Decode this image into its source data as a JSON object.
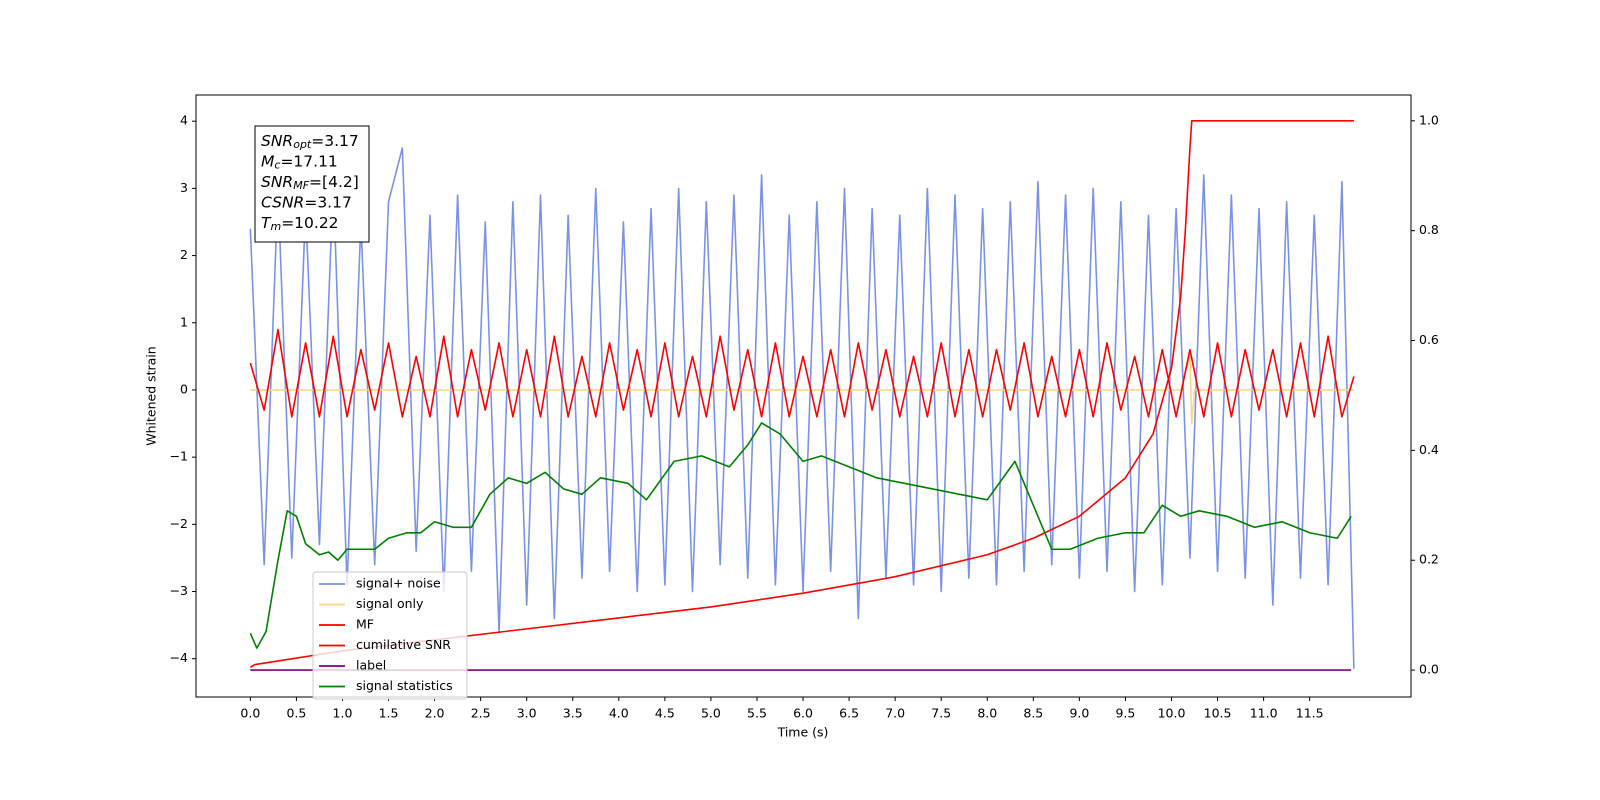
{
  "chart_data": {
    "type": "line",
    "xlabel": "Time (s)",
    "ylabel": "Whitened strain",
    "xlim": [
      -0.59,
      12.6
    ],
    "ylim": [
      -4.57,
      4.39
    ],
    "y2lim": [
      -0.049,
      1.047
    ],
    "xticks": [
      {
        "value": 0,
        "label": "0.0"
      },
      0.5,
      {
        "value": 1,
        "label": "1.0"
      },
      1.5,
      {
        "value": 2,
        "label": "2.0"
      },
      2.5,
      {
        "value": 3,
        "label": "3.0"
      },
      3.5,
      {
        "value": 4,
        "label": "4.0"
      },
      4.5,
      {
        "value": 5,
        "label": "5.0"
      },
      5.5,
      {
        "value": 6,
        "label": "6.0"
      },
      6.5,
      {
        "value": 7,
        "label": "7.0"
      },
      7.5,
      {
        "value": 8,
        "label": "8.0"
      },
      8.5,
      {
        "value": 9,
        "label": "9.0"
      },
      9.5,
      {
        "value": 10,
        "label": "10.0"
      },
      10.5,
      {
        "value": 11,
        "label": "11.0"
      },
      11.5
    ],
    "yticks": [
      -4,
      -3,
      -2,
      -1,
      0,
      1,
      2,
      3,
      4
    ],
    "y2ticks": [
      {
        "value": 0,
        "label": "0.0"
      },
      0.2,
      0.4,
      0.6,
      0.8,
      {
        "value": 1,
        "label": "1.0"
      }
    ],
    "legend": "lower left",
    "annotations": [
      {
        "symbol": "SNR",
        "subscript": "opt",
        "text": "=3.17"
      },
      {
        "symbol": "M",
        "subscript": "c",
        "text": "=17.11"
      },
      {
        "symbol": "SNR",
        "subscript": "MF",
        "text": "=[4.2]"
      },
      {
        "symbol": "CSNR",
        "text": "=3.17"
      },
      {
        "symbol": "T",
        "subscript": "m",
        "text": "=10.22"
      }
    ],
    "series": [
      {
        "name": "signal+ noise",
        "color": "#7b93e6",
        "x": [
          0,
          0.15,
          0.3,
          0.45,
          0.6,
          0.75,
          0.9,
          1.05,
          1.2,
          1.35,
          1.5,
          1.65,
          1.8,
          1.95,
          2.1,
          2.25,
          2.4,
          2.55,
          2.7,
          2.85,
          3,
          3.15,
          3.3,
          3.45,
          3.6,
          3.75,
          3.9,
          4.05,
          4.2,
          4.35,
          4.5,
          4.65,
          4.8,
          4.95,
          5.1,
          5.25,
          5.4,
          5.55,
          5.7,
          5.85,
          6,
          6.15,
          6.3,
          6.45,
          6.6,
          6.75,
          6.9,
          7.05,
          7.2,
          7.35,
          7.5,
          7.65,
          7.8,
          7.95,
          8.1,
          8.25,
          8.4,
          8.55,
          8.7,
          8.85,
          9,
          9.15,
          9.3,
          9.45,
          9.6,
          9.75,
          9.9,
          10.05,
          10.2,
          10.35,
          10.5,
          10.65,
          10.8,
          10.95,
          11.1,
          11.25,
          11.4,
          11.55,
          11.7,
          11.85,
          11.98
        ],
        "values": [
          2.4,
          -2.6,
          3.0,
          -2.5,
          2.7,
          -2.3,
          3.1,
          -2.9,
          2.5,
          -2.6,
          2.8,
          3.6,
          -2.4,
          2.6,
          -3.0,
          2.9,
          -2.7,
          2.5,
          -3.6,
          2.8,
          -3.2,
          2.9,
          -3.4,
          2.6,
          -2.8,
          3.0,
          -2.7,
          2.5,
          -3.0,
          2.7,
          -2.9,
          3.0,
          -3.0,
          2.8,
          -2.6,
          2.9,
          -2.8,
          3.2,
          -2.9,
          2.6,
          -3.0,
          2.8,
          -2.7,
          3.0,
          -3.4,
          2.7,
          -2.8,
          2.6,
          -2.9,
          3.0,
          -3.0,
          2.9,
          -2.8,
          2.7,
          -2.9,
          2.8,
          -2.7,
          3.1,
          -2.6,
          2.9,
          -2.8,
          3.0,
          -2.7,
          2.8,
          -3.0,
          2.6,
          -2.9,
          2.7,
          -2.5,
          3.2,
          -2.7,
          2.9,
          -2.8,
          2.7,
          -3.2,
          2.8,
          -2.8,
          2.6,
          -2.9,
          3.1,
          -4.15
        ]
      },
      {
        "name": "signal only",
        "color": "#ffd58a",
        "x": [
          0,
          10.1,
          10.2,
          10.22,
          10.25,
          11.98
        ],
        "values": [
          0,
          0,
          0.5,
          -0.5,
          0,
          0
        ]
      },
      {
        "name": "MF",
        "color": "#ff0000",
        "x": [
          0,
          0.15,
          0.3,
          0.45,
          0.6,
          0.75,
          0.9,
          1.05,
          1.2,
          1.35,
          1.5,
          1.65,
          1.8,
          1.95,
          2.1,
          2.25,
          2.4,
          2.55,
          2.7,
          2.85,
          3,
          3.15,
          3.3,
          3.45,
          3.6,
          3.75,
          3.9,
          4.05,
          4.2,
          4.35,
          4.5,
          4.65,
          4.8,
          4.95,
          5.1,
          5.25,
          5.4,
          5.55,
          5.7,
          5.85,
          6,
          6.15,
          6.3,
          6.45,
          6.6,
          6.75,
          6.9,
          7.05,
          7.2,
          7.35,
          7.5,
          7.65,
          7.8,
          7.95,
          8.1,
          8.25,
          8.4,
          8.55,
          8.7,
          8.85,
          9,
          9.15,
          9.3,
          9.45,
          9.6,
          9.75,
          9.9,
          10.05,
          10.2,
          10.35,
          10.5,
          10.65,
          10.8,
          10.95,
          11.1,
          11.25,
          11.4,
          11.55,
          11.7,
          11.85,
          11.98
        ],
        "values": [
          0.4,
          -0.3,
          0.9,
          -0.4,
          0.7,
          -0.4,
          0.8,
          -0.4,
          0.6,
          -0.3,
          0.7,
          -0.4,
          0.5,
          -0.4,
          0.8,
          -0.4,
          0.6,
          -0.3,
          0.7,
          -0.4,
          0.6,
          -0.4,
          0.8,
          -0.4,
          0.5,
          -0.4,
          0.7,
          -0.3,
          0.6,
          -0.4,
          0.7,
          -0.4,
          0.5,
          -0.4,
          0.8,
          -0.3,
          0.6,
          -0.4,
          0.7,
          -0.4,
          0.5,
          -0.4,
          0.6,
          -0.4,
          0.7,
          -0.3,
          0.6,
          -0.4,
          0.5,
          -0.4,
          0.7,
          -0.4,
          0.6,
          -0.4,
          0.6,
          -0.3,
          0.7,
          -0.4,
          0.5,
          -0.4,
          0.6,
          -0.4,
          0.7,
          -0.3,
          0.5,
          -0.4,
          0.6,
          -0.4,
          0.6,
          -0.4,
          0.7,
          -0.4,
          0.6,
          -0.3,
          0.6,
          -0.4,
          0.7,
          -0.4,
          0.8,
          -0.4,
          0.2
        ]
      },
      {
        "name": "cumilative SNR",
        "color": "#ff0000",
        "axis": "y2",
        "x": [
          0,
          0.05,
          1,
          2,
          3,
          4,
          5,
          6,
          7,
          8,
          8.5,
          9,
          9.5,
          9.8,
          10.0,
          10.1,
          10.15,
          10.2,
          10.22,
          11.98
        ],
        "values": [
          0.005,
          0.01,
          0.035,
          0.055,
          0.075,
          0.095,
          0.115,
          0.14,
          0.17,
          0.21,
          0.24,
          0.28,
          0.35,
          0.43,
          0.55,
          0.68,
          0.8,
          0.95,
          1.0,
          1.0
        ]
      },
      {
        "name": "label",
        "color": "#800080",
        "axis": "y2",
        "x": [
          0,
          11.95
        ],
        "values": [
          0,
          0
        ]
      },
      {
        "name": "signal statistics",
        "color": "#008000",
        "axis": "y2",
        "x": [
          0,
          0.07,
          0.17,
          0.3,
          0.4,
          0.5,
          0.6,
          0.75,
          0.85,
          0.95,
          1.05,
          1.2,
          1.35,
          1.5,
          1.7,
          1.85,
          2.0,
          2.2,
          2.4,
          2.6,
          2.8,
          3.0,
          3.2,
          3.4,
          3.6,
          3.8,
          4.1,
          4.3,
          4.6,
          4.9,
          5.2,
          5.4,
          5.55,
          5.75,
          6.0,
          6.2,
          6.5,
          6.8,
          7.1,
          7.4,
          7.7,
          8.0,
          8.3,
          8.5,
          8.7,
          8.9,
          9.2,
          9.5,
          9.7,
          9.9,
          10.1,
          10.3,
          10.6,
          10.9,
          11.2,
          11.5,
          11.8,
          11.95
        ],
        "values": [
          0.067,
          0.04,
          0.07,
          0.2,
          0.29,
          0.28,
          0.23,
          0.21,
          0.215,
          0.2,
          0.22,
          0.22,
          0.22,
          0.24,
          0.25,
          0.25,
          0.27,
          0.26,
          0.26,
          0.32,
          0.35,
          0.34,
          0.36,
          0.33,
          0.32,
          0.35,
          0.34,
          0.31,
          0.38,
          0.39,
          0.37,
          0.41,
          0.45,
          0.43,
          0.38,
          0.39,
          0.37,
          0.35,
          0.34,
          0.33,
          0.32,
          0.31,
          0.38,
          0.3,
          0.22,
          0.22,
          0.24,
          0.25,
          0.25,
          0.3,
          0.28,
          0.29,
          0.28,
          0.26,
          0.27,
          0.25,
          0.24,
          0.28
        ]
      }
    ]
  }
}
